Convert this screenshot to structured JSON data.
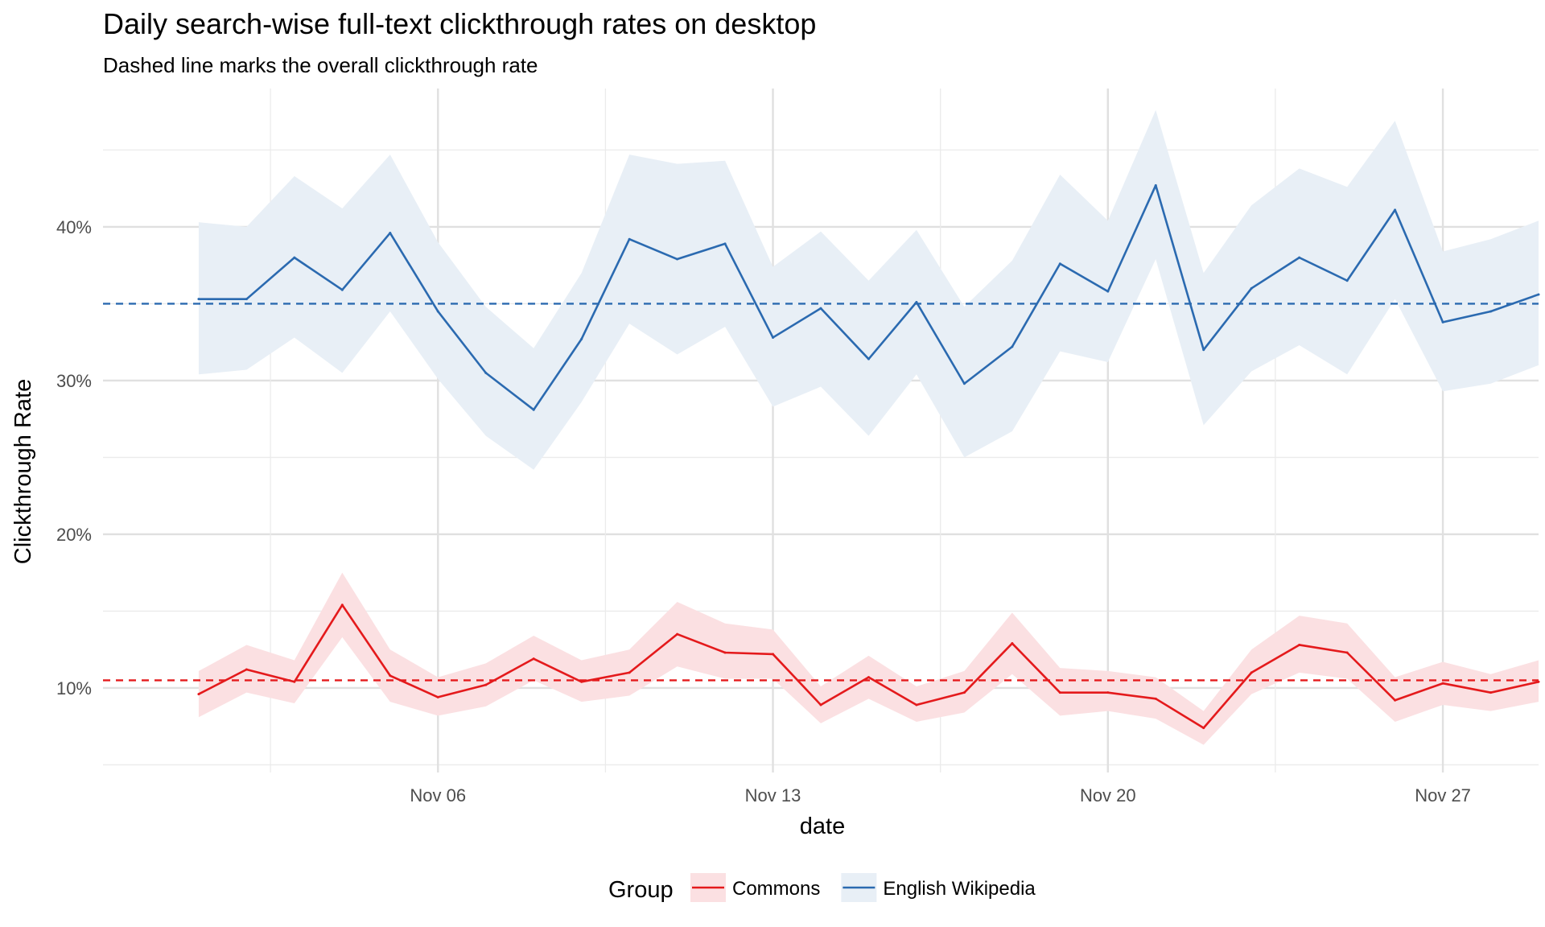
{
  "chart_data": {
    "type": "line",
    "title": "Daily search-wise full-text clickthrough rates on desktop",
    "subtitle": "Dashed line marks the overall clickthrough rate",
    "xlabel": "date",
    "ylabel": "Clickthrough Rate",
    "x_start": "2017-11-01",
    "x_ticks": [
      "Nov 06",
      "Nov 13",
      "Nov 20",
      "Nov 27"
    ],
    "x_tick_dates": [
      "2017-11-06",
      "2017-11-13",
      "2017-11-20",
      "2017-11-27"
    ],
    "xlim": [
      "2017-10-30",
      "2017-11-29"
    ],
    "ylim": [
      4.5,
      49
    ],
    "y_ticks": [
      10,
      20,
      30,
      40
    ],
    "y_tick_labels": [
      "10%",
      "20%",
      "30%",
      "40%"
    ],
    "y_minor_ticks": [
      5,
      15,
      25,
      35,
      45
    ],
    "grid": true,
    "legend": {
      "title": "Group",
      "placement": "bottom"
    },
    "dates": [
      "2017-11-01",
      "2017-11-02",
      "2017-11-03",
      "2017-11-04",
      "2017-11-05",
      "2017-11-06",
      "2017-11-07",
      "2017-11-08",
      "2017-11-09",
      "2017-11-10",
      "2017-11-11",
      "2017-11-12",
      "2017-11-13",
      "2017-11-14",
      "2017-11-15",
      "2017-11-16",
      "2017-11-17",
      "2017-11-18",
      "2017-11-19",
      "2017-11-20",
      "2017-11-21",
      "2017-11-22",
      "2017-11-23",
      "2017-11-24",
      "2017-11-25",
      "2017-11-26",
      "2017-11-27",
      "2017-11-28",
      "2017-11-29"
    ],
    "series": [
      {
        "name": "Commons",
        "color": "#e41a1c",
        "band_color": "#fbe0e2",
        "overall": 10.5,
        "values": [
          9.6,
          11.2,
          10.4,
          15.4,
          10.8,
          9.4,
          10.2,
          11.9,
          10.4,
          11.0,
          13.5,
          12.3,
          12.2,
          8.9,
          10.7,
          8.9,
          9.7,
          12.9,
          9.7,
          9.7,
          9.3,
          7.4,
          11.0,
          12.8,
          12.3,
          9.2,
          10.3,
          9.7,
          10.4
        ],
        "lower": [
          8.1,
          9.7,
          9.0,
          13.3,
          9.1,
          8.2,
          8.8,
          10.5,
          9.1,
          9.5,
          11.4,
          10.6,
          10.6,
          7.7,
          9.3,
          7.8,
          8.4,
          10.9,
          8.2,
          8.5,
          8.0,
          6.3,
          9.6,
          11.0,
          10.6,
          7.8,
          8.9,
          8.5,
          9.1
        ],
        "upper": [
          11.1,
          12.8,
          11.8,
          17.5,
          12.5,
          10.7,
          11.6,
          13.4,
          11.8,
          12.5,
          15.6,
          14.2,
          13.8,
          10.1,
          12.1,
          10.1,
          11.1,
          14.9,
          11.3,
          11.1,
          10.7,
          8.5,
          12.5,
          14.7,
          14.2,
          10.7,
          11.7,
          10.9,
          11.8
        ]
      },
      {
        "name": "English Wikipedia",
        "color": "#2b6ab0",
        "band_color": "#e8eff6",
        "overall": 35.0,
        "values": [
          35.3,
          35.3,
          38.0,
          35.9,
          39.6,
          34.5,
          30.5,
          28.1,
          32.7,
          39.2,
          37.9,
          38.9,
          32.8,
          34.7,
          31.4,
          35.1,
          29.8,
          32.2,
          37.6,
          35.8,
          42.7,
          32.0,
          36.0,
          38.0,
          36.5,
          41.1,
          33.8,
          34.5,
          35.6
        ],
        "lower": [
          30.4,
          30.7,
          32.8,
          30.5,
          34.5,
          30.1,
          26.4,
          24.2,
          28.6,
          33.7,
          31.7,
          33.5,
          28.3,
          29.6,
          26.4,
          30.4,
          25.0,
          26.7,
          31.9,
          31.2,
          37.9,
          27.1,
          30.6,
          32.3,
          30.4,
          35.3,
          29.3,
          29.8,
          31.0
        ],
        "upper": [
          40.3,
          40.0,
          43.3,
          41.2,
          44.7,
          39.0,
          34.8,
          32.1,
          37.0,
          44.7,
          44.1,
          44.3,
          37.4,
          39.7,
          36.5,
          39.8,
          34.8,
          37.8,
          43.4,
          40.4,
          47.6,
          37.0,
          41.4,
          43.8,
          42.6,
          46.9,
          38.4,
          39.2,
          40.4
        ]
      }
    ]
  }
}
